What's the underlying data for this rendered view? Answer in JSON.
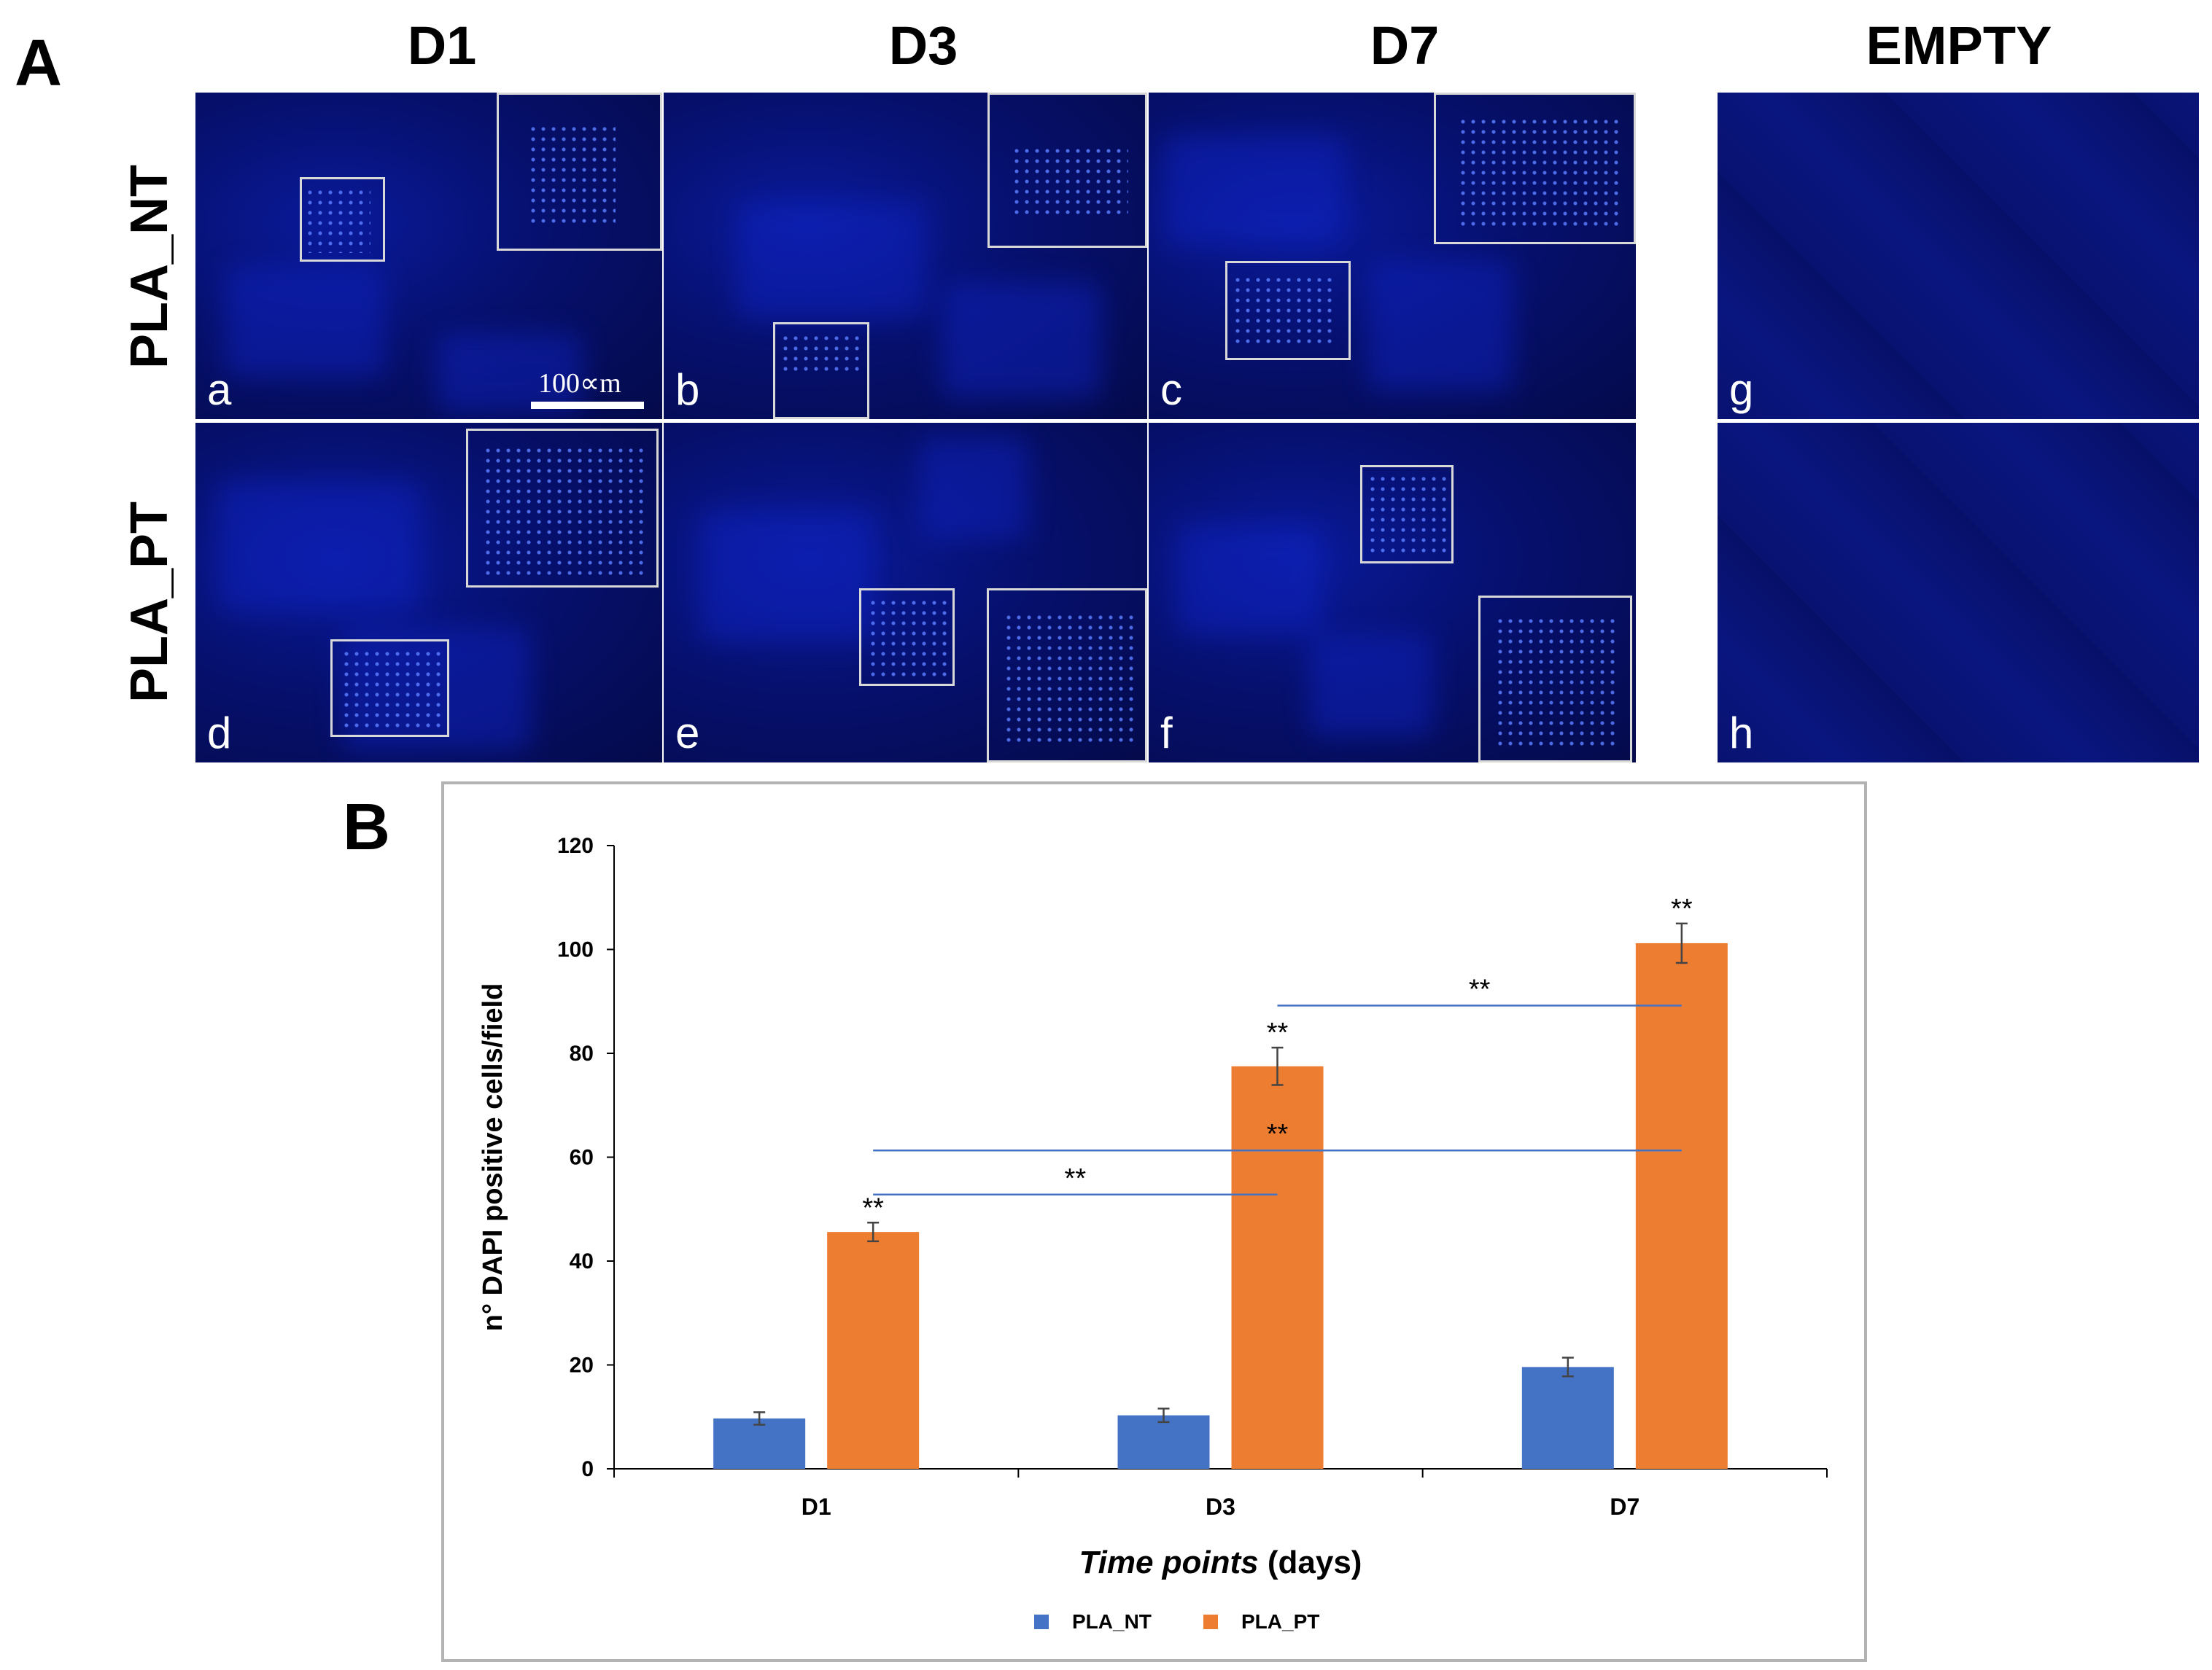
{
  "panel_a": {
    "letter": "A",
    "columns": [
      "D1",
      "D3",
      "D7",
      "EMPTY"
    ],
    "rows": [
      "PLA_NT",
      "PLA_PT"
    ],
    "tiles": [
      {
        "label": "a"
      },
      {
        "label": "b"
      },
      {
        "label": "c"
      },
      {
        "label": "d"
      },
      {
        "label": "e"
      },
      {
        "label": "f"
      },
      {
        "label": "g"
      },
      {
        "label": "h"
      }
    ],
    "scale_bar": "100∝m"
  },
  "panel_b": {
    "letter": "B"
  },
  "chart_data": {
    "type": "bar",
    "categories": [
      "D1",
      "D3",
      "D7"
    ],
    "series": [
      {
        "name": "PLA_NT",
        "color": "#4472c4",
        "values": [
          9.7,
          10.3,
          19.6
        ],
        "errors": [
          1.2,
          1.3,
          1.8
        ]
      },
      {
        "name": "PLA_PT",
        "color": "#ed7d31",
        "values": [
          45.6,
          77.5,
          101.2
        ],
        "errors": [
          1.8,
          3.6,
          3.8
        ]
      }
    ],
    "ylim": [
      0,
      120
    ],
    "yticks": [
      "0",
      "20",
      "40",
      "60",
      "80",
      "100",
      "120"
    ],
    "ylabel": "n° DAPI positive cells/field",
    "xlabel_italic": "Time points",
    "xlabel_rest": " (days)",
    "bar_annotations": [
      "**",
      "**",
      "**"
    ],
    "comparisons": [
      {
        "from": "D1",
        "to": "D3",
        "y": 52.8,
        "label": "**"
      },
      {
        "from": "D1",
        "to": "D7",
        "y": 61.3,
        "label": "**"
      },
      {
        "from": "D3",
        "to": "D7",
        "y": 89.2,
        "label": "**"
      }
    ],
    "comparison_color": "#4472c4"
  }
}
